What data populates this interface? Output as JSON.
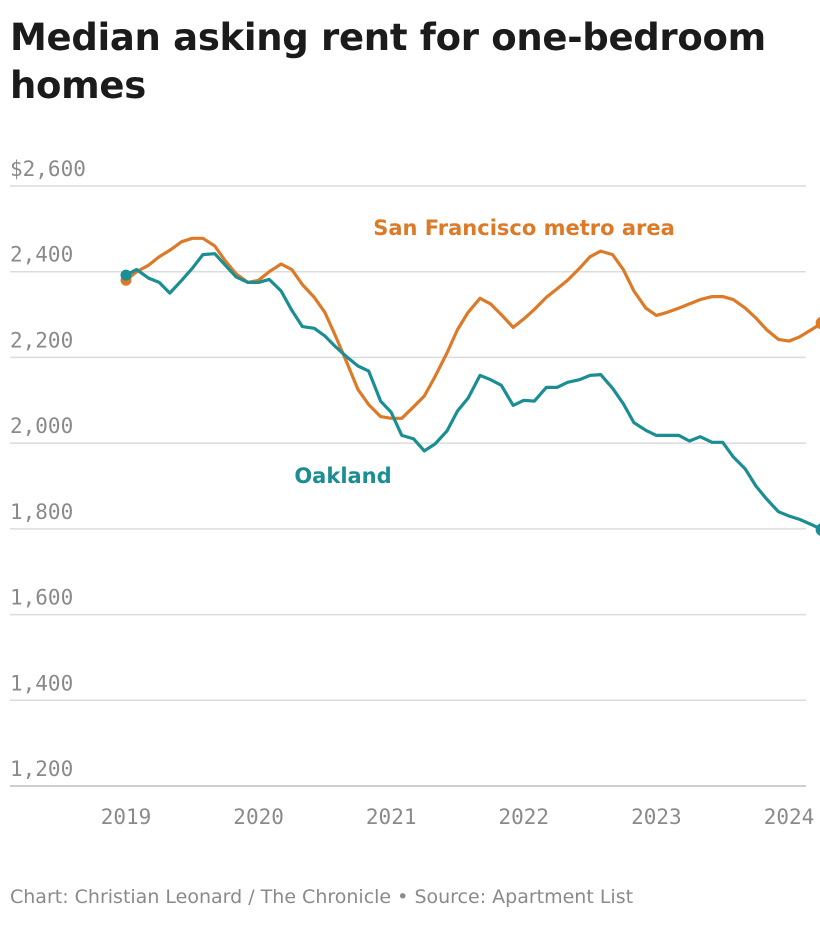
{
  "title": "Median asking rent for one-bedroom homes",
  "footer": {
    "credit": "Chart: Christian Leonard / The Chronicle",
    "separator": "•",
    "source": "Source: Apartment List"
  },
  "chart_data": {
    "type": "line",
    "ylabel": "",
    "xlabel": "",
    "ylim": [
      1200,
      2600
    ],
    "xlim": [
      2018.92,
      2024.33
    ],
    "y_ticks": [
      2600,
      2400,
      2200,
      2000,
      1800,
      1600,
      1400,
      1200
    ],
    "y_tick_labels": [
      "$2,600",
      "2,400",
      "2,200",
      "2,000",
      "1,800",
      "1,600",
      "1,400",
      "1,200"
    ],
    "x_ticks": [
      2019,
      2020,
      2021,
      2022,
      2023,
      2024
    ],
    "x_tick_labels": [
      "2019",
      "2020",
      "2021",
      "2022",
      "2023",
      "2024"
    ],
    "grid": true,
    "legend": "inline labels",
    "series": [
      {
        "name": "San Francisco metro area",
        "color": "#dd7a27",
        "x": [
          2019.0,
          2019.08,
          2019.17,
          2019.25,
          2019.33,
          2019.42,
          2019.5,
          2019.58,
          2019.67,
          2019.75,
          2019.83,
          2019.92,
          2020.0,
          2020.08,
          2020.17,
          2020.25,
          2020.33,
          2020.42,
          2020.5,
          2020.58,
          2020.67,
          2020.75,
          2020.83,
          2020.92,
          2021.0,
          2021.08,
          2021.17,
          2021.25,
          2021.33,
          2021.42,
          2021.5,
          2021.58,
          2021.67,
          2021.75,
          2021.83,
          2021.92,
          2022.0,
          2022.08,
          2022.17,
          2022.25,
          2022.33,
          2022.42,
          2022.5,
          2022.58,
          2022.67,
          2022.75,
          2022.83,
          2022.92,
          2023.0,
          2023.08,
          2023.17,
          2023.25,
          2023.33,
          2023.42,
          2023.5,
          2023.58,
          2023.67,
          2023.75,
          2023.83,
          2023.92,
          2024.0,
          2024.08,
          2024.17,
          2024.25
        ],
        "values": [
          2380,
          2400,
          2415,
          2435,
          2450,
          2470,
          2478,
          2478,
          2460,
          2425,
          2395,
          2375,
          2380,
          2400,
          2418,
          2405,
          2370,
          2340,
          2305,
          2250,
          2185,
          2125,
          2090,
          2062,
          2058,
          2058,
          2085,
          2110,
          2155,
          2210,
          2265,
          2305,
          2338,
          2325,
          2300,
          2270,
          2290,
          2312,
          2340,
          2360,
          2380,
          2408,
          2435,
          2448,
          2440,
          2405,
          2355,
          2315,
          2298,
          2305,
          2315,
          2325,
          2335,
          2342,
          2342,
          2335,
          2315,
          2292,
          2265,
          2242,
          2238,
          2248,
          2265,
          2280
        ]
      },
      {
        "name": "Oakland",
        "color": "#1b8e93",
        "x": [
          2019.0,
          2019.08,
          2019.17,
          2019.25,
          2019.33,
          2019.42,
          2019.5,
          2019.58,
          2019.67,
          2019.75,
          2019.83,
          2019.92,
          2020.0,
          2020.08,
          2020.17,
          2020.25,
          2020.33,
          2020.42,
          2020.5,
          2020.58,
          2020.67,
          2020.75,
          2020.83,
          2020.92,
          2021.0,
          2021.08,
          2021.17,
          2021.25,
          2021.33,
          2021.42,
          2021.5,
          2021.58,
          2021.67,
          2021.75,
          2021.83,
          2021.92,
          2022.0,
          2022.08,
          2022.17,
          2022.25,
          2022.33,
          2022.42,
          2022.5,
          2022.58,
          2022.67,
          2022.75,
          2022.83,
          2022.92,
          2023.0,
          2023.08,
          2023.17,
          2023.25,
          2023.33,
          2023.42,
          2023.5,
          2023.58,
          2023.67,
          2023.75,
          2023.83,
          2023.92,
          2024.0,
          2024.08,
          2024.17,
          2024.25
        ],
        "values": [
          2392,
          2405,
          2385,
          2375,
          2350,
          2380,
          2408,
          2440,
          2442,
          2415,
          2388,
          2375,
          2375,
          2382,
          2355,
          2310,
          2272,
          2268,
          2250,
          2225,
          2200,
          2180,
          2168,
          2098,
          2072,
          2018,
          2010,
          1982,
          1998,
          2028,
          2075,
          2105,
          2158,
          2148,
          2135,
          2088,
          2100,
          2098,
          2130,
          2130,
          2142,
          2148,
          2158,
          2160,
          2128,
          2092,
          2048,
          2030,
          2018,
          2018,
          2018,
          2005,
          2015,
          2002,
          2002,
          1968,
          1940,
          1900,
          1870,
          1840,
          1830,
          1822,
          1810,
          1798
        ]
      }
    ]
  }
}
